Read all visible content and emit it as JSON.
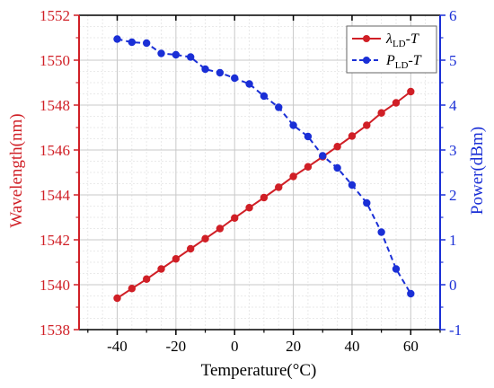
{
  "chart_data": {
    "type": "line",
    "xlabel": "Temperature(°C)",
    "ylabel_left": "Wavelength(nm)",
    "ylabel_right": "Power(dBm)",
    "xlim": [
      -53,
      70
    ],
    "ylim_left": [
      1538,
      1552
    ],
    "ylim_right": [
      -1,
      6
    ],
    "x_ticks": [
      -40,
      -20,
      0,
      20,
      40,
      60
    ],
    "y_left_ticks": [
      1538,
      1540,
      1542,
      1544,
      1546,
      1548,
      1550,
      1552
    ],
    "y_right_ticks": [
      -1,
      0,
      1,
      2,
      3,
      4,
      5,
      6
    ],
    "grid": true,
    "legend_position": "top-right",
    "colors": {
      "left_axis": "#d01f26",
      "right_axis": "#1a2fd6",
      "grid_major": "#c8c8c8",
      "grid_minor": "#e4e4e4"
    },
    "series": [
      {
        "legend_symbol": "λ",
        "legend_sub": "LD",
        "legend_suffix": "-T",
        "axis": "left",
        "style": "solid",
        "color": "#d01f26",
        "x": [
          -40,
          -35,
          -30,
          -25,
          -20,
          -15,
          -10,
          -5,
          0,
          5,
          10,
          15,
          20,
          25,
          30,
          35,
          40,
          45,
          50,
          55,
          60
        ],
        "values": [
          1539.4,
          1539.83,
          1540.25,
          1540.7,
          1541.15,
          1541.6,
          1542.05,
          1542.5,
          1542.97,
          1543.43,
          1543.88,
          1544.34,
          1544.82,
          1545.25,
          1545.7,
          1546.15,
          1546.62,
          1547.1,
          1547.65,
          1548.1,
          1548.6
        ]
      },
      {
        "legend_symbol": "P",
        "legend_sub": "LD",
        "legend_suffix": "-T",
        "axis": "right",
        "style": "dashed",
        "color": "#1a2fd6",
        "x": [
          -40,
          -35,
          -30,
          -25,
          -20,
          -15,
          -10,
          -5,
          0,
          5,
          10,
          15,
          20,
          25,
          30,
          35,
          40,
          45,
          50,
          55,
          60
        ],
        "values": [
          5.47,
          5.4,
          5.38,
          5.15,
          5.12,
          5.07,
          4.8,
          4.72,
          4.6,
          4.47,
          4.2,
          3.95,
          3.55,
          3.3,
          2.87,
          2.6,
          2.22,
          1.82,
          1.17,
          0.35,
          -0.2
        ]
      }
    ]
  }
}
